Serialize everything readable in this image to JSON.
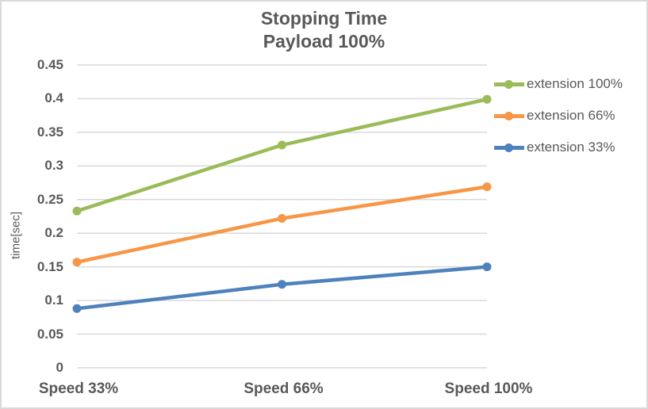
{
  "chart_data": {
    "type": "line",
    "title": "Stopping Time",
    "subtitle": "Payload 100%",
    "ylabel": "time[sec]",
    "xlabel": "",
    "categories": [
      "Speed 33%",
      "Speed 66%",
      "Speed 100%"
    ],
    "series": [
      {
        "name": "extension 100%",
        "color": "#9BBB59",
        "values": [
          0.233,
          0.331,
          0.399
        ]
      },
      {
        "name": "extension 66%",
        "color": "#F79646",
        "values": [
          0.157,
          0.222,
          0.269
        ]
      },
      {
        "name": "extension 33%",
        "color": "#4F81BD",
        "values": [
          0.088,
          0.124,
          0.15
        ]
      }
    ],
    "ylim": [
      0,
      0.45
    ],
    "ytick_step": 0.05,
    "yticks": [
      "0",
      "0.05",
      "0.1",
      "0.15",
      "0.2",
      "0.25",
      "0.3",
      "0.35",
      "0.4",
      "0.45"
    ],
    "grid": "horizontal",
    "legend_position": "right",
    "colors": {
      "text": "#595959",
      "gridline": "#D9D9D9",
      "axis_line": "#D9D9D9",
      "border": "#D9D9D9",
      "background": "#FFFFFF"
    }
  }
}
